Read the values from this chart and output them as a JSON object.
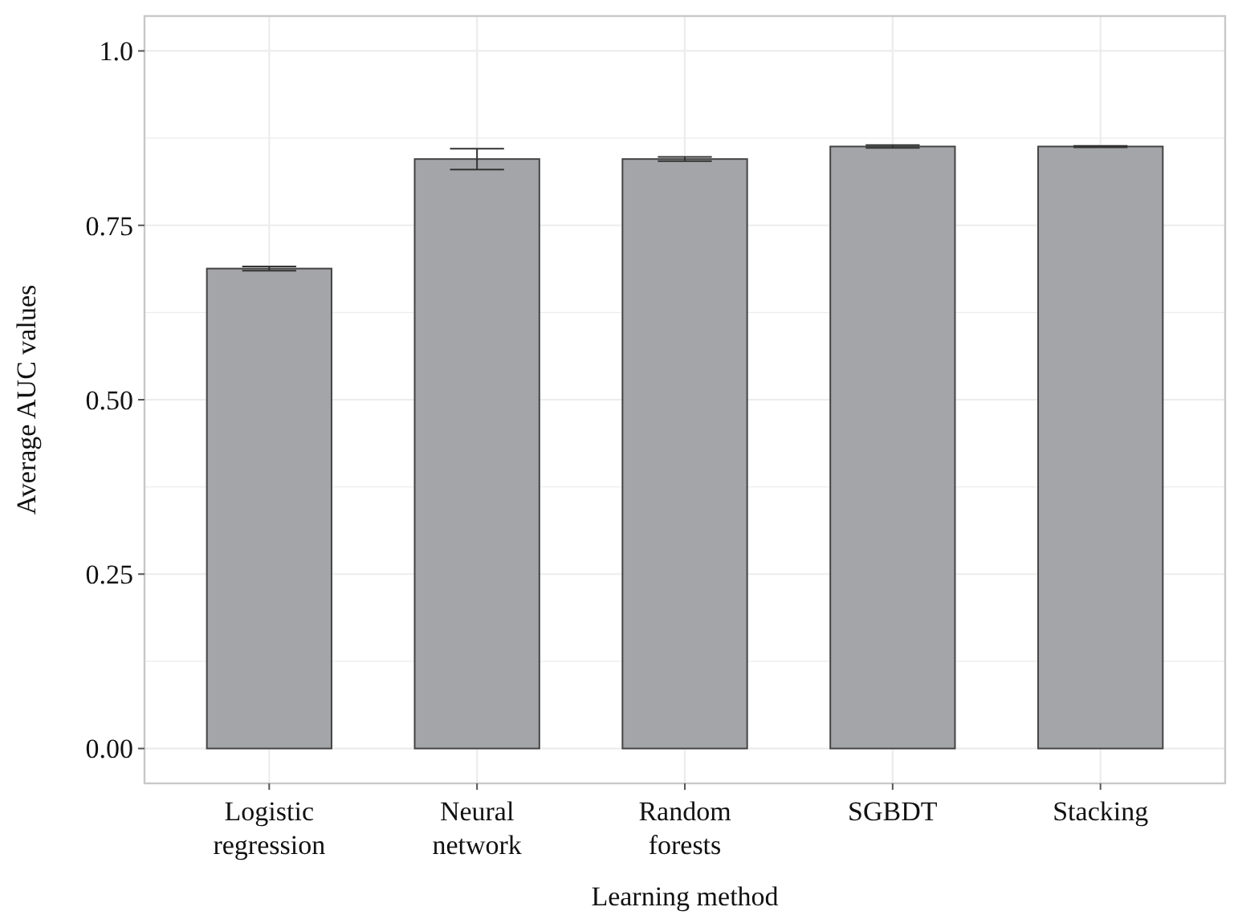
{
  "chart_data": {
    "type": "bar",
    "xlabel": "Learning method",
    "ylabel": "Average AUC values",
    "categories": [
      "Logistic regression",
      "Neural network",
      "Random forests",
      "SGBDT",
      "Stacking"
    ],
    "values": [
      0.688,
      0.845,
      0.845,
      0.863,
      0.863
    ],
    "errors": [
      0.003,
      0.015,
      0.003,
      0.002,
      0.001
    ],
    "color": "#a4a5a9",
    "ylim": [
      -0.05,
      1.05
    ],
    "yticks": [
      {
        "value": 0,
        "label": "0.00"
      },
      {
        "value": 0.25,
        "label": "0.25"
      },
      {
        "value": 0.5,
        "label": "0.50"
      },
      {
        "value": 0.75,
        "label": "0.75"
      },
      {
        "value": 1,
        "label": "1.0"
      }
    ],
    "grid": true
  }
}
